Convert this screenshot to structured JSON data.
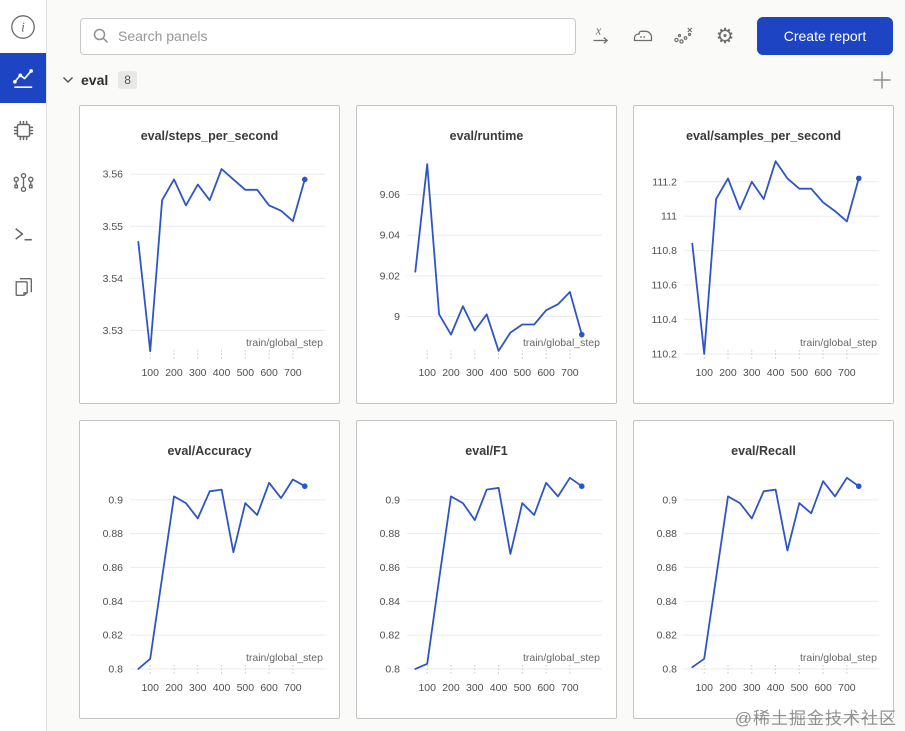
{
  "sidebar": {
    "icons": [
      {
        "name": "info-icon"
      },
      {
        "name": "charts-icon",
        "active": true
      },
      {
        "name": "system-icon"
      },
      {
        "name": "model-graph-icon"
      },
      {
        "name": "terminal-icon"
      },
      {
        "name": "files-icon"
      }
    ]
  },
  "topbar": {
    "search_placeholder": "Search panels",
    "icons": [
      "x-axis-icon",
      "smoothing-icon",
      "outliers-icon",
      "settings-icon"
    ],
    "create_report_label": "Create report"
  },
  "section": {
    "label": "eval",
    "count": "8"
  },
  "watermark": "@稀土掘金技术社区",
  "colors": {
    "accent_blue": "#1d44c2",
    "line_blue": "#2e55c6",
    "grid_gray": "#ececec"
  },
  "chart_data": [
    {
      "type": "line",
      "title": "eval/steps_per_second",
      "xlabel": "train/global_step",
      "x": [
        50,
        100,
        150,
        200,
        250,
        300,
        350,
        400,
        450,
        500,
        550,
        600,
        650,
        700,
        750
      ],
      "y": [
        3.547,
        3.526,
        3.555,
        3.559,
        3.554,
        3.558,
        3.555,
        3.561,
        3.559,
        3.557,
        3.557,
        3.554,
        3.553,
        3.551,
        3.559
      ],
      "xlim": [
        15,
        835
      ],
      "ylim": [
        3.5245,
        3.5635
      ],
      "yticks": [
        {
          "v": 3.53,
          "label": "3.53"
        },
        {
          "v": 3.54,
          "label": "3.54"
        },
        {
          "v": 3.55,
          "label": "3.55"
        },
        {
          "v": 3.56,
          "label": "3.56"
        }
      ],
      "xticks": [
        {
          "v": 100,
          "label": "100"
        },
        {
          "v": 200,
          "label": "200"
        },
        {
          "v": 300,
          "label": "300"
        },
        {
          "v": 400,
          "label": "400"
        },
        {
          "v": 500,
          "label": "500"
        },
        {
          "v": 600,
          "label": "600"
        },
        {
          "v": 700,
          "label": "700"
        }
      ]
    },
    {
      "type": "line",
      "title": "eval/runtime",
      "xlabel": "train/global_step",
      "x": [
        50,
        100,
        150,
        200,
        250,
        300,
        350,
        400,
        450,
        500,
        550,
        600,
        650,
        700,
        750
      ],
      "y": [
        9.022,
        9.075,
        9.001,
        8.991,
        9.005,
        8.993,
        9.001,
        8.983,
        8.992,
        8.996,
        8.996,
        9.003,
        9.006,
        9.012,
        8.991
      ],
      "xlim": [
        15,
        835
      ],
      "ylim": [
        8.979,
        9.079
      ],
      "yticks": [
        {
          "v": 9.0,
          "label": "9"
        },
        {
          "v": 9.02,
          "label": "9.02"
        },
        {
          "v": 9.04,
          "label": "9.04"
        },
        {
          "v": 9.06,
          "label": "9.06"
        }
      ],
      "xticks": [
        {
          "v": 100,
          "label": "100"
        },
        {
          "v": 200,
          "label": "200"
        },
        {
          "v": 300,
          "label": "300"
        },
        {
          "v": 400,
          "label": "400"
        },
        {
          "v": 500,
          "label": "500"
        },
        {
          "v": 600,
          "label": "600"
        },
        {
          "v": 700,
          "label": "700"
        }
      ]
    },
    {
      "type": "line",
      "title": "eval/samples_per_second",
      "xlabel": "train/global_step",
      "x": [
        50,
        100,
        150,
        200,
        250,
        300,
        350,
        400,
        450,
        500,
        550,
        600,
        650,
        700,
        750
      ],
      "y": [
        110.84,
        110.2,
        111.1,
        111.22,
        111.04,
        111.2,
        111.1,
        111.32,
        111.22,
        111.16,
        111.16,
        111.08,
        111.03,
        110.97,
        111.22
      ],
      "xlim": [
        15,
        835
      ],
      "ylim": [
        110.17,
        111.35
      ],
      "yticks": [
        {
          "v": 110.2,
          "label": "110.2"
        },
        {
          "v": 110.4,
          "label": "110.4"
        },
        {
          "v": 110.6,
          "label": "110.6"
        },
        {
          "v": 110.8,
          "label": "110.8"
        },
        {
          "v": 111.0,
          "label": "111"
        },
        {
          "v": 111.2,
          "label": "111.2"
        }
      ],
      "xticks": [
        {
          "v": 100,
          "label": "100"
        },
        {
          "v": 200,
          "label": "200"
        },
        {
          "v": 300,
          "label": "300"
        },
        {
          "v": 400,
          "label": "400"
        },
        {
          "v": 500,
          "label": "500"
        },
        {
          "v": 600,
          "label": "600"
        },
        {
          "v": 700,
          "label": "700"
        }
      ]
    },
    {
      "type": "line",
      "title": "eval/Accuracy",
      "xlabel": "train/global_step",
      "x": [
        50,
        100,
        150,
        200,
        250,
        300,
        350,
        400,
        450,
        500,
        550,
        600,
        650,
        700,
        750
      ],
      "y": [
        0.8,
        0.806,
        0.854,
        0.902,
        0.898,
        0.889,
        0.905,
        0.906,
        0.869,
        0.898,
        0.891,
        0.91,
        0.901,
        0.912,
        0.908
      ],
      "xlim": [
        15,
        835
      ],
      "ylim": [
        0.797,
        0.917
      ],
      "yticks": [
        {
          "v": 0.8,
          "label": "0.8"
        },
        {
          "v": 0.82,
          "label": "0.82"
        },
        {
          "v": 0.84,
          "label": "0.84"
        },
        {
          "v": 0.86,
          "label": "0.86"
        },
        {
          "v": 0.88,
          "label": "0.88"
        },
        {
          "v": 0.9,
          "label": "0.9"
        }
      ],
      "xticks": [
        {
          "v": 100,
          "label": "100"
        },
        {
          "v": 200,
          "label": "200"
        },
        {
          "v": 300,
          "label": "300"
        },
        {
          "v": 400,
          "label": "400"
        },
        {
          "v": 500,
          "label": "500"
        },
        {
          "v": 600,
          "label": "600"
        },
        {
          "v": 700,
          "label": "700"
        }
      ]
    },
    {
      "type": "line",
      "title": "eval/F1",
      "xlabel": "train/global_step",
      "x": [
        50,
        100,
        150,
        200,
        250,
        300,
        350,
        400,
        450,
        500,
        550,
        600,
        650,
        700,
        750
      ],
      "y": [
        0.8,
        0.803,
        0.853,
        0.902,
        0.898,
        0.888,
        0.906,
        0.907,
        0.868,
        0.898,
        0.891,
        0.91,
        0.902,
        0.913,
        0.908
      ],
      "xlim": [
        15,
        835
      ],
      "ylim": [
        0.797,
        0.917
      ],
      "yticks": [
        {
          "v": 0.8,
          "label": "0.8"
        },
        {
          "v": 0.82,
          "label": "0.82"
        },
        {
          "v": 0.84,
          "label": "0.84"
        },
        {
          "v": 0.86,
          "label": "0.86"
        },
        {
          "v": 0.88,
          "label": "0.88"
        },
        {
          "v": 0.9,
          "label": "0.9"
        }
      ],
      "xticks": [
        {
          "v": 100,
          "label": "100"
        },
        {
          "v": 200,
          "label": "200"
        },
        {
          "v": 300,
          "label": "300"
        },
        {
          "v": 400,
          "label": "400"
        },
        {
          "v": 500,
          "label": "500"
        },
        {
          "v": 600,
          "label": "600"
        },
        {
          "v": 700,
          "label": "700"
        }
      ]
    },
    {
      "type": "line",
      "title": "eval/Recall",
      "xlabel": "train/global_step",
      "x": [
        50,
        100,
        150,
        200,
        250,
        300,
        350,
        400,
        450,
        500,
        550,
        600,
        650,
        700,
        750
      ],
      "y": [
        0.801,
        0.806,
        0.854,
        0.902,
        0.898,
        0.889,
        0.905,
        0.906,
        0.87,
        0.898,
        0.892,
        0.911,
        0.902,
        0.913,
        0.908
      ],
      "xlim": [
        15,
        835
      ],
      "ylim": [
        0.797,
        0.917
      ],
      "yticks": [
        {
          "v": 0.8,
          "label": "0.8"
        },
        {
          "v": 0.82,
          "label": "0.82"
        },
        {
          "v": 0.84,
          "label": "0.84"
        },
        {
          "v": 0.86,
          "label": "0.86"
        },
        {
          "v": 0.88,
          "label": "0.88"
        },
        {
          "v": 0.9,
          "label": "0.9"
        }
      ],
      "xticks": [
        {
          "v": 100,
          "label": "100"
        },
        {
          "v": 200,
          "label": "200"
        },
        {
          "v": 300,
          "label": "300"
        },
        {
          "v": 400,
          "label": "400"
        },
        {
          "v": 500,
          "label": "500"
        },
        {
          "v": 600,
          "label": "600"
        },
        {
          "v": 700,
          "label": "700"
        }
      ]
    }
  ]
}
